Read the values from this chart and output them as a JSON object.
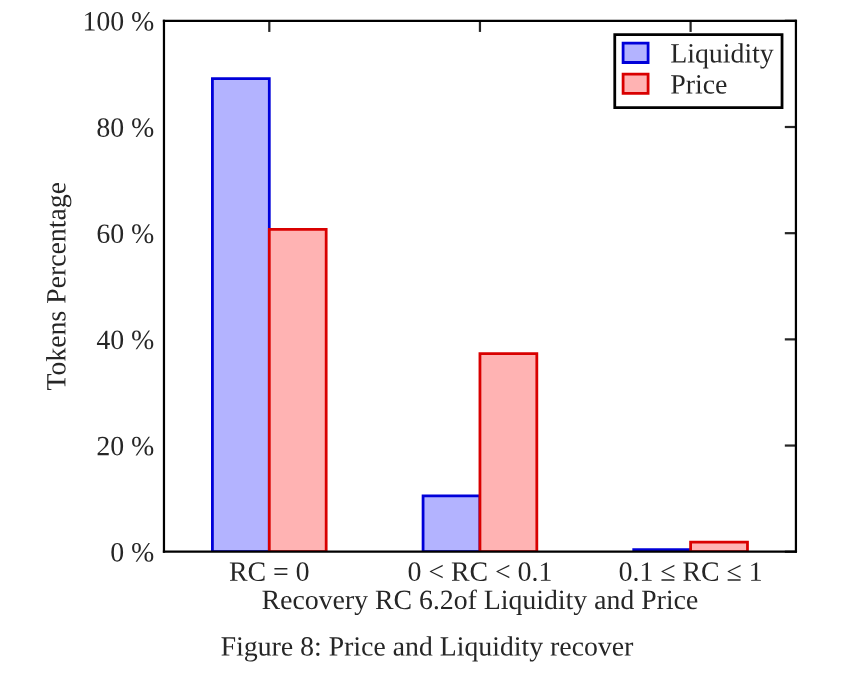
{
  "chart_data": {
    "type": "bar",
    "categories": [
      "RC = 0",
      "0 < RC < 0.1",
      "0.1 ≤ RC ≤ 1"
    ],
    "series": [
      {
        "name": "Liquidity",
        "color": "#b3b3ff",
        "values": [
          89.1,
          10.5,
          0.4
        ]
      },
      {
        "name": "Price",
        "color": "#ffb3b3",
        "values": [
          60.7,
          37.3,
          1.8
        ]
      }
    ],
    "xlabel": "Recovery RC 6.2of Liquidity and Price",
    "ylabel": "Tokens Percentage",
    "annotations": [
      "Figure 8: Price and Liquidity recover"
    ],
    "ylim": [
      0,
      100
    ],
    "yticks": [
      {
        "value": 0,
        "label": "0 %"
      },
      {
        "value": 20,
        "label": "20 %"
      },
      {
        "value": 40,
        "label": "40 %"
      },
      {
        "value": 60,
        "label": "60 %"
      },
      {
        "value": 80,
        "label": "80 %"
      },
      {
        "value": 100,
        "label": "100 %"
      }
    ],
    "legend": "top right",
    "grid": false
  }
}
